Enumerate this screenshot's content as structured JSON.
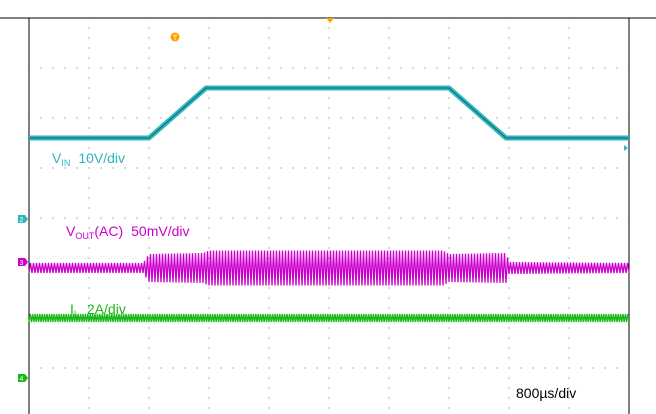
{
  "chart_data": {
    "type": "line",
    "title": "",
    "timebase": "800µs/div",
    "grid": true,
    "divisions": {
      "x": 10,
      "y": 8
    },
    "markers": {
      "trigger": "T",
      "ch2": "2",
      "ch3": "3",
      "ch4": "4"
    },
    "colors": {
      "vin": "#2fb6be",
      "vout": "#cc00cc",
      "il": "#18b818",
      "trigger": "#ffa000",
      "grid": "#9a9a9a",
      "frame": "#000000"
    },
    "series": [
      {
        "name_main": "V",
        "name_sub": "IN",
        "scale": "10V/div",
        "x_div": [
          0,
          2.0,
          2.95,
          7.0,
          7.95,
          10
        ],
        "y_div": [
          1.6,
          1.6,
          2.6,
          2.6,
          1.6,
          1.6
        ]
      },
      {
        "name_main": "V",
        "name_sub": "OUT",
        "name_suffix": "(AC)",
        "scale": "50mV/div",
        "baseline_div": -1.0,
        "ripple_amp_div": [
          [
            0,
            0.1
          ],
          [
            1.9,
            0.1
          ],
          [
            2.0,
            0.28
          ],
          [
            2.9,
            0.3
          ],
          [
            3.0,
            0.35
          ],
          [
            6.9,
            0.35
          ],
          [
            7.0,
            0.28
          ],
          [
            7.95,
            0.3
          ],
          [
            8.0,
            0.12
          ],
          [
            10,
            0.1
          ]
        ]
      },
      {
        "name_main": "I",
        "name_sub": "L",
        "scale": "2A/div",
        "baseline_div": -2.0,
        "ripple_amp_div": [
          [
            0,
            0.08
          ],
          [
            10,
            0.08
          ]
        ]
      }
    ]
  }
}
